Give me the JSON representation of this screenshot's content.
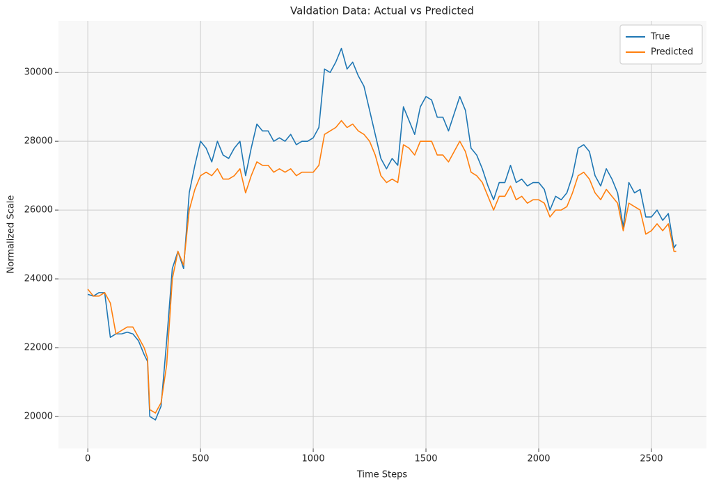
{
  "chart_data": {
    "type": "line",
    "title": "Valdation Data: Actual vs Predicted",
    "x_label": "Time Steps",
    "y_label": "Normalized Scale",
    "xlim": [
      -130,
      2744
    ],
    "ylim": [
      19070,
      31500
    ],
    "xticks": [
      0,
      500,
      1000,
      1500,
      2000,
      2500
    ],
    "yticks": [
      20000,
      22000,
      24000,
      26000,
      28000,
      30000
    ],
    "grid": true,
    "legend": "upper right",
    "x": [
      0,
      25,
      50,
      75,
      100,
      125,
      150,
      175,
      200,
      225,
      250,
      265,
      275,
      300,
      325,
      350,
      375,
      400,
      425,
      450,
      475,
      500,
      525,
      550,
      575,
      600,
      625,
      650,
      675,
      700,
      725,
      750,
      775,
      800,
      825,
      850,
      875,
      900,
      925,
      950,
      975,
      1000,
      1025,
      1050,
      1075,
      1100,
      1125,
      1150,
      1175,
      1200,
      1225,
      1250,
      1275,
      1300,
      1325,
      1350,
      1375,
      1400,
      1425,
      1450,
      1475,
      1500,
      1525,
      1550,
      1575,
      1600,
      1625,
      1650,
      1675,
      1700,
      1725,
      1750,
      1775,
      1800,
      1825,
      1850,
      1875,
      1900,
      1925,
      1950,
      1975,
      2000,
      2025,
      2050,
      2075,
      2100,
      2125,
      2150,
      2175,
      2200,
      2225,
      2250,
      2275,
      2300,
      2325,
      2350,
      2375,
      2400,
      2425,
      2450,
      2475,
      2500,
      2525,
      2550,
      2575,
      2600,
      2610
    ],
    "series": [
      {
        "name": "True",
        "color": "#1f77b4",
        "values": [
          23550,
          23500,
          23600,
          23600,
          22300,
          22400,
          22400,
          22450,
          22400,
          22200,
          21800,
          21600,
          20000,
          19900,
          20300,
          22200,
          24300,
          24800,
          24300,
          26500,
          27300,
          28000,
          27800,
          27400,
          28000,
          27600,
          27500,
          27800,
          28000,
          27000,
          27800,
          28500,
          28300,
          28300,
          28000,
          28100,
          28000,
          28200,
          27900,
          28000,
          28000,
          28100,
          28400,
          30100,
          30000,
          30300,
          30700,
          30100,
          30300,
          29900,
          29600,
          28900,
          28200,
          27500,
          27200,
          27500,
          27300,
          29000,
          28600,
          28200,
          29000,
          29300,
          29200,
          28700,
          28700,
          28300,
          28800,
          29300,
          28900,
          27800,
          27600,
          27200,
          26700,
          26300,
          26800,
          26800,
          27300,
          26800,
          26900,
          26700,
          26800,
          26800,
          26600,
          26000,
          26400,
          26300,
          26500,
          27000,
          27800,
          27900,
          27700,
          27000,
          26700,
          27200,
          26900,
          26500,
          25500,
          26800,
          26500,
          26600,
          25800,
          25800,
          26000,
          25700,
          25900,
          24900,
          25000
        ]
      },
      {
        "name": "Predicted",
        "color": "#ff7f0e",
        "values": [
          23700,
          23500,
          23500,
          23600,
          23300,
          22400,
          22500,
          22600,
          22600,
          22300,
          22000,
          21700,
          20200,
          20100,
          20400,
          21500,
          24000,
          24800,
          24400,
          26000,
          26600,
          27000,
          27100,
          27000,
          27200,
          26900,
          26900,
          27000,
          27200,
          26500,
          27000,
          27400,
          27300,
          27300,
          27100,
          27200,
          27100,
          27200,
          27000,
          27100,
          27100,
          27100,
          27300,
          28200,
          28300,
          28400,
          28600,
          28400,
          28500,
          28300,
          28200,
          28000,
          27600,
          27000,
          26800,
          26900,
          26800,
          27900,
          27800,
          27600,
          28000,
          28000,
          28000,
          27600,
          27600,
          27400,
          27700,
          28000,
          27700,
          27100,
          27000,
          26800,
          26400,
          26000,
          26400,
          26400,
          26700,
          26300,
          26400,
          26200,
          26300,
          26300,
          26200,
          25800,
          26000,
          26000,
          26100,
          26500,
          27000,
          27100,
          26900,
          26500,
          26300,
          26600,
          26400,
          26200,
          25400,
          26200,
          26100,
          26000,
          25300,
          25400,
          25600,
          25400,
          25600,
          24800,
          24800
        ]
      }
    ]
  }
}
